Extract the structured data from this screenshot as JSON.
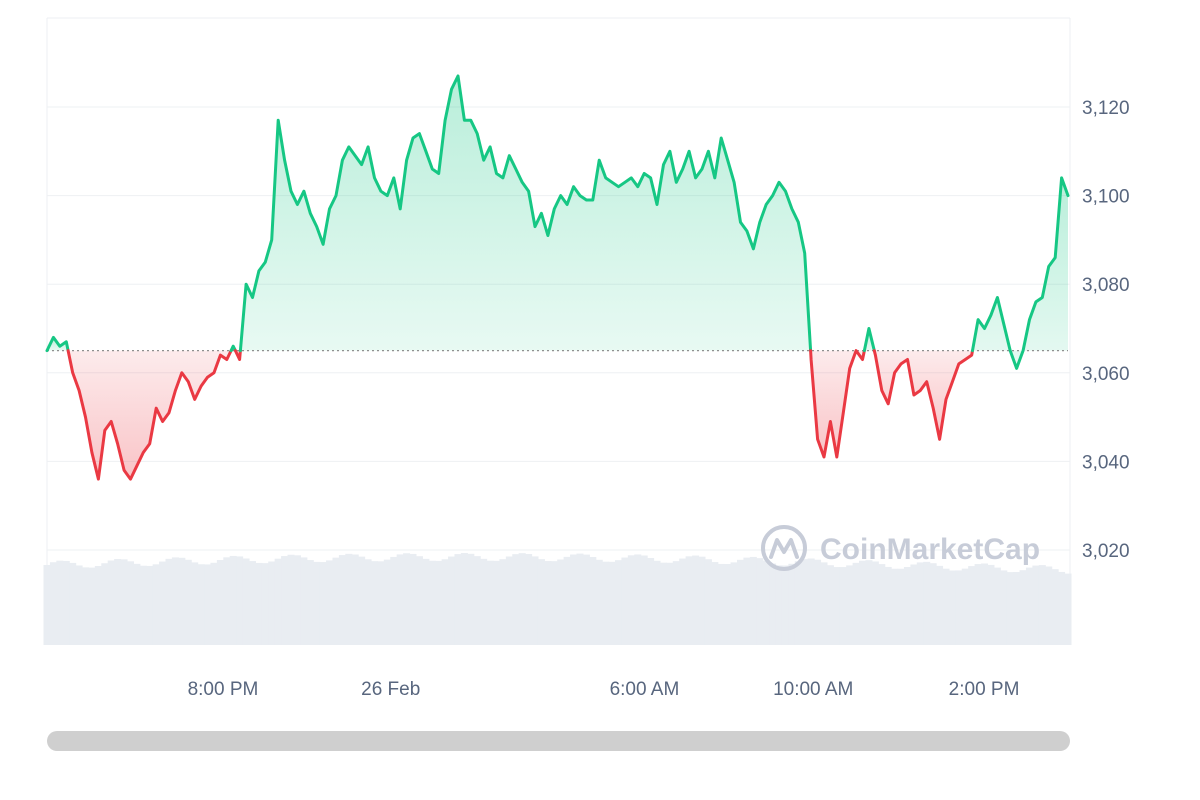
{
  "chart_data": {
    "type": "area",
    "y_tick_labels": [
      "3,020",
      "3,040",
      "3,060",
      "3,080",
      "3,100",
      "3,120"
    ],
    "y_tick_values": [
      3020,
      3040,
      3060,
      3080,
      3100,
      3120
    ],
    "ylim": [
      3000,
      3140
    ],
    "baseline": 3065,
    "x_tick_labels": [
      "8:00 PM",
      "26 Feb",
      "6:00 AM",
      "10:00 AM",
      "2:00 PM"
    ],
    "x_tick_positions": [
      0.172,
      0.336,
      0.584,
      0.749,
      0.916
    ],
    "values": [
      3065,
      3068,
      3066,
      3067,
      3060,
      3056,
      3050,
      3042,
      3036,
      3047,
      3049,
      3044,
      3038,
      3036,
      3039,
      3042,
      3044,
      3052,
      3049,
      3051,
      3056,
      3060,
      3058,
      3054,
      3057,
      3059,
      3060,
      3064,
      3063,
      3066,
      3063,
      3080,
      3077,
      3083,
      3085,
      3090,
      3117,
      3108,
      3101,
      3098,
      3101,
      3096,
      3093,
      3089,
      3097,
      3100,
      3108,
      3111,
      3109,
      3107,
      3111,
      3104,
      3101,
      3100,
      3104,
      3097,
      3108,
      3113,
      3114,
      3110,
      3106,
      3105,
      3117,
      3124,
      3127,
      3117,
      3117,
      3114,
      3108,
      3111,
      3105,
      3104,
      3109,
      3106,
      3103,
      3101,
      3093,
      3096,
      3091,
      3097,
      3100,
      3098,
      3102,
      3100,
      3099,
      3099,
      3108,
      3104,
      3103,
      3102,
      3103,
      3104,
      3102,
      3105,
      3104,
      3098,
      3107,
      3110,
      3103,
      3106,
      3110,
      3104,
      3106,
      3110,
      3104,
      3113,
      3108,
      3103,
      3094,
      3092,
      3088,
      3094,
      3098,
      3100,
      3103,
      3101,
      3097,
      3094,
      3087,
      3063,
      3045,
      3041,
      3049,
      3041,
      3051,
      3061,
      3065,
      3063,
      3070,
      3064,
      3056,
      3053,
      3060,
      3062,
      3063,
      3055,
      3056,
      3058,
      3052,
      3045,
      3054,
      3058,
      3062,
      3063,
      3064,
      3072,
      3070,
      3073,
      3077,
      3071,
      3065,
      3061,
      3065,
      3072,
      3076,
      3077,
      3084,
      3086,
      3104,
      3100
    ],
    "up_color": "#16c784",
    "down_color": "#ea3943",
    "volume_color": "#e9edf2",
    "gridlines": true,
    "watermark": "CoinMarketCap"
  },
  "scrollbar": {
    "value": 1.0
  }
}
